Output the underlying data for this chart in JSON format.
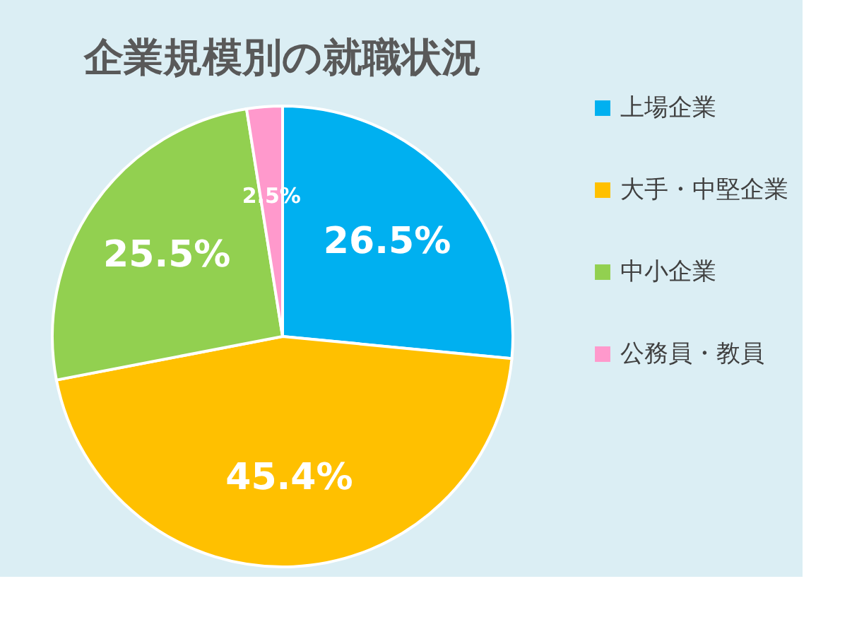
{
  "chart_data": {
    "type": "pie",
    "title": "企業規模別の就職状況",
    "categories": [
      "上場企業",
      "大手・中堅企業",
      "中小企業",
      "公務員・教員"
    ],
    "values": [
      26.5,
      45.4,
      25.5,
      2.5
    ],
    "colors": [
      "#00b0f0",
      "#ffc000",
      "#92d050",
      "#ff99cc"
    ],
    "value_labels": [
      "26.5%",
      "45.4%",
      "25.5%",
      "2.5%"
    ],
    "legend": "right"
  }
}
